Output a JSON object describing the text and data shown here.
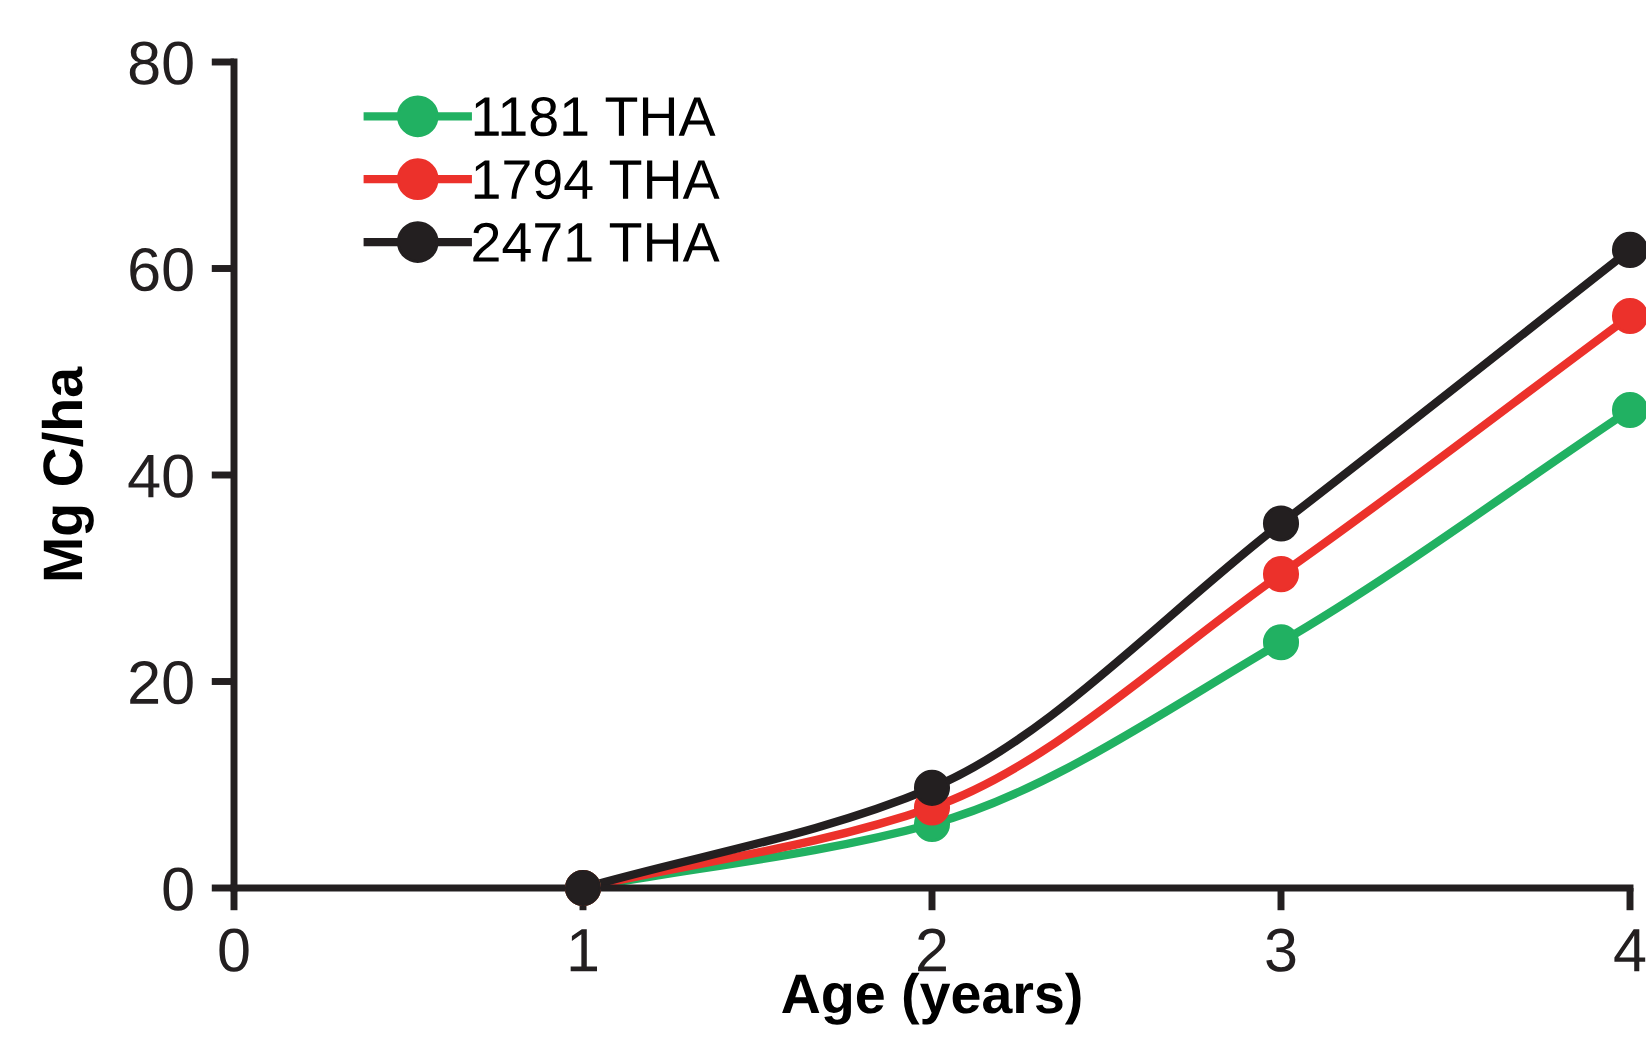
{
  "chart_data": {
    "type": "line",
    "xlabel": "Age (years)",
    "ylabel": "Mg C/ha",
    "x": [
      1,
      2,
      3,
      4
    ],
    "series": [
      {
        "name": "1181 THA",
        "color": "#21b162",
        "values": [
          0,
          6.2,
          23.8,
          46.3
        ]
      },
      {
        "name": "1794 THA",
        "color": "#ec312b",
        "values": [
          0,
          7.8,
          30.4,
          55.4
        ]
      },
      {
        "name": "2471 THA",
        "color": "#231f20",
        "values": [
          0,
          9.7,
          35.3,
          61.8
        ]
      }
    ],
    "xlim": [
      0,
      4
    ],
    "xticks": [
      0,
      1,
      2,
      3,
      4
    ],
    "ylim": [
      0,
      80
    ],
    "yticks": [
      0,
      20,
      40,
      60,
      80
    ],
    "grid": false,
    "legend": "top left",
    "marker": "circle",
    "line_style": "solid"
  }
}
